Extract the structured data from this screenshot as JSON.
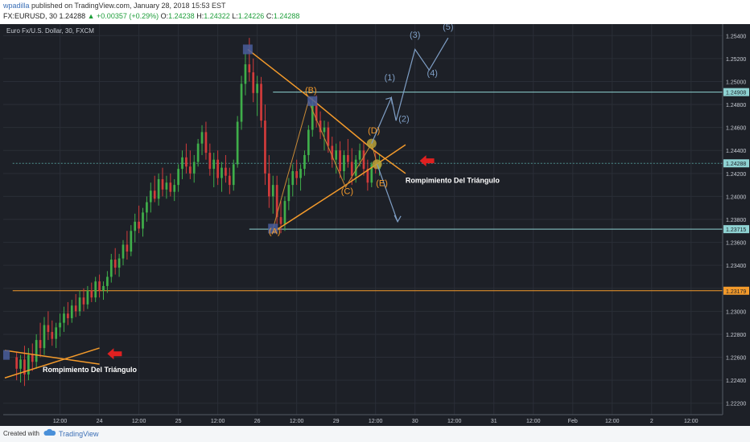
{
  "header": {
    "author": "wpadilla",
    "published_text": "published on TradingView.com, January 28, 2018 15:53 EST",
    "symbol_info": "FX:EURUSD, 30",
    "last": "1.24288",
    "change": "+0.00357 (+0.29%)",
    "open_label": "O:",
    "open": "1.24238",
    "high_label": "H:",
    "high": "1.24322",
    "low_label": "L:",
    "low": "1.24226",
    "close_label": "C:",
    "close": "1.24288"
  },
  "footer": {
    "created_with": "Created with",
    "brand": "TradingView"
  },
  "chart_data": {
    "type": "candlestick",
    "title": "Euro Fx/U.S. Dollar, 30, FXCM",
    "y_axis": {
      "range": [
        1.221,
        1.255
      ],
      "ticks": [
        "1.25400",
        "1.25200",
        "1.25000",
        "1.24800",
        "1.24600",
        "1.24400",
        "1.24200",
        "1.24000",
        "1.23800",
        "1.23600",
        "1.23400",
        "1.23200",
        "1.23000",
        "1.22800",
        "1.22600",
        "1.22400",
        "1.22200"
      ]
    },
    "x_axis": {
      "ticks": [
        {
          "label": "12:00",
          "t": 0.5
        },
        {
          "label": "24",
          "t": 1
        },
        {
          "label": "12:00",
          "t": 1.5
        },
        {
          "label": "25",
          "t": 2
        },
        {
          "label": "12:00",
          "t": 2.5
        },
        {
          "label": "26",
          "t": 3
        },
        {
          "label": "12:00",
          "t": 3.5
        },
        {
          "label": "29",
          "t": 4
        },
        {
          "label": "12:00",
          "t": 4.5
        },
        {
          "label": "30",
          "t": 5
        },
        {
          "label": "12:00",
          "t": 5.5
        },
        {
          "label": "31",
          "t": 6
        },
        {
          "label": "12:00",
          "t": 6.5
        },
        {
          "label": "Feb",
          "t": 7
        },
        {
          "label": "12:00",
          "t": 7.5
        },
        {
          "label": "2",
          "t": 8
        },
        {
          "label": "12:00",
          "t": 8.5
        }
      ]
    },
    "price_marks": [
      {
        "label": "1.24908",
        "value": 1.24908,
        "color": "#8fd3d3"
      },
      {
        "label": "1.24288",
        "value": 1.24288,
        "color": "#8fd3d3"
      },
      {
        "label": "1.23715",
        "value": 1.23715,
        "color": "#8fd3d3"
      },
      {
        "label": "1.23179",
        "value": 1.23179,
        "color": "#f39a2b"
      }
    ],
    "h_lines": [
      {
        "value": 1.24908,
        "t_start": 3.2,
        "color": "#8fd3d3"
      },
      {
        "value": 1.23715,
        "t_start": 2.9,
        "color": "#8fd3d3"
      },
      {
        "value": 1.23179,
        "t_start": -0.1,
        "color": "#f39a2b"
      },
      {
        "value": 1.24288,
        "t_start": -0.1,
        "color": "#4f8f8f",
        "dashed": true
      }
    ],
    "candles": [
      {
        "t": -0.05,
        "o": 1.226,
        "h": 1.2265,
        "l": 1.224,
        "c": 1.225
      },
      {
        "t": 0.0,
        "o": 1.225,
        "h": 1.2262,
        "l": 1.2238,
        "c": 1.2258
      },
      {
        "t": 0.05,
        "o": 1.2258,
        "h": 1.227,
        "l": 1.2235,
        "c": 1.2245
      },
      {
        "t": 0.1,
        "o": 1.2245,
        "h": 1.2268,
        "l": 1.224,
        "c": 1.2262
      },
      {
        "t": 0.15,
        "o": 1.2262,
        "h": 1.2272,
        "l": 1.2248,
        "c": 1.2256
      },
      {
        "t": 0.2,
        "o": 1.2256,
        "h": 1.228,
        "l": 1.225,
        "c": 1.2275
      },
      {
        "t": 0.25,
        "o": 1.2275,
        "h": 1.229,
        "l": 1.226,
        "c": 1.2268
      },
      {
        "t": 0.3,
        "o": 1.2268,
        "h": 1.2295,
        "l": 1.2262,
        "c": 1.2288
      },
      {
        "t": 0.35,
        "o": 1.2288,
        "h": 1.23,
        "l": 1.2275,
        "c": 1.2282
      },
      {
        "t": 0.4,
        "o": 1.2282,
        "h": 1.2292,
        "l": 1.227,
        "c": 1.2276
      },
      {
        "t": 0.45,
        "o": 1.2276,
        "h": 1.229,
        "l": 1.2268,
        "c": 1.2286
      },
      {
        "t": 0.5,
        "o": 1.2286,
        "h": 1.2298,
        "l": 1.2278,
        "c": 1.229
      },
      {
        "t": 0.55,
        "o": 1.229,
        "h": 1.2304,
        "l": 1.2282,
        "c": 1.2298
      },
      {
        "t": 0.6,
        "o": 1.2298,
        "h": 1.2308,
        "l": 1.2288,
        "c": 1.2294
      },
      {
        "t": 0.65,
        "o": 1.2294,
        "h": 1.231,
        "l": 1.229,
        "c": 1.2305
      },
      {
        "t": 0.7,
        "o": 1.2305,
        "h": 1.2315,
        "l": 1.2295,
        "c": 1.23
      },
      {
        "t": 0.75,
        "o": 1.23,
        "h": 1.2318,
        "l": 1.2296,
        "c": 1.2312
      },
      {
        "t": 0.8,
        "o": 1.2312,
        "h": 1.232,
        "l": 1.23,
        "c": 1.2306
      },
      {
        "t": 0.85,
        "o": 1.2306,
        "h": 1.2322,
        "l": 1.2302,
        "c": 1.2318
      },
      {
        "t": 0.9,
        "o": 1.2318,
        "h": 1.2325,
        "l": 1.2308,
        "c": 1.2312
      },
      {
        "t": 0.95,
        "o": 1.2312,
        "h": 1.233,
        "l": 1.2308,
        "c": 1.2326
      },
      {
        "t": 1.0,
        "o": 1.2326,
        "h": 1.2332,
        "l": 1.2312,
        "c": 1.2318
      },
      {
        "t": 1.05,
        "o": 1.2318,
        "h": 1.2326,
        "l": 1.231,
        "c": 1.2322
      },
      {
        "t": 1.1,
        "o": 1.2322,
        "h": 1.2335,
        "l": 1.2316,
        "c": 1.233
      },
      {
        "t": 1.15,
        "o": 1.233,
        "h": 1.235,
        "l": 1.2325,
        "c": 1.2345
      },
      {
        "t": 1.2,
        "o": 1.2345,
        "h": 1.2355,
        "l": 1.2332,
        "c": 1.2338
      },
      {
        "t": 1.25,
        "o": 1.2338,
        "h": 1.235,
        "l": 1.233,
        "c": 1.2346
      },
      {
        "t": 1.3,
        "o": 1.2346,
        "h": 1.2362,
        "l": 1.234,
        "c": 1.2358
      },
      {
        "t": 1.35,
        "o": 1.2358,
        "h": 1.237,
        "l": 1.2345,
        "c": 1.2352
      },
      {
        "t": 1.4,
        "o": 1.2352,
        "h": 1.2375,
        "l": 1.2348,
        "c": 1.237
      },
      {
        "t": 1.45,
        "o": 1.237,
        "h": 1.2385,
        "l": 1.236,
        "c": 1.2378
      },
      {
        "t": 1.5,
        "o": 1.2378,
        "h": 1.2392,
        "l": 1.2368,
        "c": 1.2372
      },
      {
        "t": 1.55,
        "o": 1.2372,
        "h": 1.239,
        "l": 1.2365,
        "c": 1.2386
      },
      {
        "t": 1.6,
        "o": 1.2386,
        "h": 1.24,
        "l": 1.2378,
        "c": 1.2395
      },
      {
        "t": 1.65,
        "o": 1.2395,
        "h": 1.2412,
        "l": 1.2386,
        "c": 1.2405
      },
      {
        "t": 1.7,
        "o": 1.2405,
        "h": 1.2418,
        "l": 1.2395,
        "c": 1.2398
      },
      {
        "t": 1.75,
        "o": 1.2398,
        "h": 1.242,
        "l": 1.2392,
        "c": 1.2415
      },
      {
        "t": 1.8,
        "o": 1.2415,
        "h": 1.2425,
        "l": 1.24,
        "c": 1.2406
      },
      {
        "t": 1.85,
        "o": 1.2406,
        "h": 1.2418,
        "l": 1.2398,
        "c": 1.2412
      },
      {
        "t": 1.9,
        "o": 1.2412,
        "h": 1.242,
        "l": 1.24,
        "c": 1.2404
      },
      {
        "t": 1.95,
        "o": 1.2404,
        "h": 1.2415,
        "l": 1.2396,
        "c": 1.241
      },
      {
        "t": 2.0,
        "o": 1.241,
        "h": 1.2428,
        "l": 1.2404,
        "c": 1.2424
      },
      {
        "t": 2.05,
        "o": 1.2424,
        "h": 1.244,
        "l": 1.2415,
        "c": 1.2434
      },
      {
        "t": 2.1,
        "o": 1.2434,
        "h": 1.2446,
        "l": 1.242,
        "c": 1.2426
      },
      {
        "t": 2.15,
        "o": 1.2426,
        "h": 1.244,
        "l": 1.2415,
        "c": 1.242
      },
      {
        "t": 2.2,
        "o": 1.242,
        "h": 1.2436,
        "l": 1.2412,
        "c": 1.243
      },
      {
        "t": 2.25,
        "o": 1.243,
        "h": 1.245,
        "l": 1.2426,
        "c": 1.2446
      },
      {
        "t": 2.3,
        "o": 1.2446,
        "h": 1.2462,
        "l": 1.2436,
        "c": 1.2456
      },
      {
        "t": 2.35,
        "o": 1.2456,
        "h": 1.2465,
        "l": 1.2432,
        "c": 1.2438
      },
      {
        "t": 2.4,
        "o": 1.2438,
        "h": 1.2446,
        "l": 1.2418,
        "c": 1.2424
      },
      {
        "t": 2.45,
        "o": 1.2424,
        "h": 1.2438,
        "l": 1.2408,
        "c": 1.2432
      },
      {
        "t": 2.5,
        "o": 1.2432,
        "h": 1.244,
        "l": 1.241,
        "c": 1.2416
      },
      {
        "t": 2.55,
        "o": 1.2416,
        "h": 1.243,
        "l": 1.2404,
        "c": 1.2425
      },
      {
        "t": 2.6,
        "o": 1.2425,
        "h": 1.2436,
        "l": 1.2412,
        "c": 1.2418
      },
      {
        "t": 2.65,
        "o": 1.2418,
        "h": 1.2425,
        "l": 1.2402,
        "c": 1.241
      },
      {
        "t": 2.7,
        "o": 1.241,
        "h": 1.2432,
        "l": 1.2405,
        "c": 1.2428
      },
      {
        "t": 2.75,
        "o": 1.2428,
        "h": 1.247,
        "l": 1.2425,
        "c": 1.2465
      },
      {
        "t": 2.8,
        "o": 1.2465,
        "h": 1.2505,
        "l": 1.2458,
        "c": 1.2498
      },
      {
        "t": 2.85,
        "o": 1.2498,
        "h": 1.2525,
        "l": 1.2488,
        "c": 1.2515
      },
      {
        "t": 2.9,
        "o": 1.2515,
        "h": 1.2538,
        "l": 1.25,
        "c": 1.2508
      },
      {
        "t": 2.95,
        "o": 1.2508,
        "h": 1.252,
        "l": 1.2482,
        "c": 1.249
      },
      {
        "t": 3.0,
        "o": 1.249,
        "h": 1.2505,
        "l": 1.247,
        "c": 1.2498
      },
      {
        "t": 3.05,
        "o": 1.2498,
        "h": 1.2504,
        "l": 1.246,
        "c": 1.2466
      },
      {
        "t": 3.1,
        "o": 1.2466,
        "h": 1.248,
        "l": 1.241,
        "c": 1.242
      },
      {
        "t": 3.15,
        "o": 1.242,
        "h": 1.2436,
        "l": 1.239,
        "c": 1.24
      },
      {
        "t": 3.2,
        "o": 1.24,
        "h": 1.2418,
        "l": 1.2385,
        "c": 1.241
      },
      {
        "t": 3.25,
        "o": 1.241,
        "h": 1.2418,
        "l": 1.2375,
        "c": 1.2382
      },
      {
        "t": 3.3,
        "o": 1.2382,
        "h": 1.2396,
        "l": 1.2368,
        "c": 1.2376
      },
      {
        "t": 3.35,
        "o": 1.2376,
        "h": 1.24,
        "l": 1.237,
        "c": 1.2396
      },
      {
        "t": 3.4,
        "o": 1.2396,
        "h": 1.2416,
        "l": 1.2388,
        "c": 1.241
      },
      {
        "t": 3.45,
        "o": 1.241,
        "h": 1.2428,
        "l": 1.24,
        "c": 1.2422
      },
      {
        "t": 3.5,
        "o": 1.2422,
        "h": 1.2432,
        "l": 1.241,
        "c": 1.2416
      },
      {
        "t": 3.55,
        "o": 1.2416,
        "h": 1.2428,
        "l": 1.2405,
        "c": 1.2424
      },
      {
        "t": 3.6,
        "o": 1.2424,
        "h": 1.244,
        "l": 1.2418,
        "c": 1.2436
      },
      {
        "t": 3.65,
        "o": 1.2436,
        "h": 1.2462,
        "l": 1.243,
        "c": 1.2458
      },
      {
        "t": 3.7,
        "o": 1.2458,
        "h": 1.2486,
        "l": 1.2452,
        "c": 1.248
      },
      {
        "t": 3.75,
        "o": 1.248,
        "h": 1.2488,
        "l": 1.246,
        "c": 1.2466
      },
      {
        "t": 3.8,
        "o": 1.2466,
        "h": 1.2474,
        "l": 1.245,
        "c": 1.2456
      },
      {
        "t": 3.85,
        "o": 1.2456,
        "h": 1.2466,
        "l": 1.244,
        "c": 1.246
      },
      {
        "t": 3.9,
        "o": 1.246,
        "h": 1.2465,
        "l": 1.2438,
        "c": 1.2444
      },
      {
        "t": 3.95,
        "o": 1.2444,
        "h": 1.2452,
        "l": 1.2425,
        "c": 1.2432
      },
      {
        "t": 4.0,
        "o": 1.2432,
        "h": 1.2446,
        "l": 1.242,
        "c": 1.244
      },
      {
        "t": 4.05,
        "o": 1.244,
        "h": 1.2448,
        "l": 1.2416,
        "c": 1.2422
      },
      {
        "t": 4.1,
        "o": 1.2422,
        "h": 1.244,
        "l": 1.2414,
        "c": 1.2436
      },
      {
        "t": 4.15,
        "o": 1.2436,
        "h": 1.245,
        "l": 1.2425,
        "c": 1.243
      },
      {
        "t": 4.2,
        "o": 1.243,
        "h": 1.2442,
        "l": 1.241,
        "c": 1.2418
      },
      {
        "t": 4.25,
        "o": 1.2418,
        "h": 1.2436,
        "l": 1.2412,
        "c": 1.2432
      },
      {
        "t": 4.3,
        "o": 1.2432,
        "h": 1.2446,
        "l": 1.2426,
        "c": 1.244
      },
      {
        "t": 4.35,
        "o": 1.244,
        "h": 1.2448,
        "l": 1.2418,
        "c": 1.2424
      },
      {
        "t": 4.4,
        "o": 1.2424,
        "h": 1.2432,
        "l": 1.2405,
        "c": 1.2412
      },
      {
        "t": 4.45,
        "o": 1.2412,
        "h": 1.243,
        "l": 1.2408,
        "c": 1.2428
      },
      {
        "t": 4.5,
        "o": 1.2428,
        "h": 1.244,
        "l": 1.242,
        "c": 1.2424
      },
      {
        "t": 4.55,
        "o": 1.2424,
        "h": 1.2436,
        "l": 1.2418,
        "c": 1.2429
      }
    ],
    "lines": [
      {
        "points": [
          [
            2.88,
            1.2528
          ],
          [
            3.72,
            1.2483
          ],
          [
            4.48,
            1.244
          ],
          [
            4.88,
            1.242
          ]
        ],
        "color": "#f39a2b"
      },
      {
        "points": [
          [
            3.18,
            1.2368
          ],
          [
            4.08,
            1.2408
          ],
          [
            4.88,
            1.2445
          ]
        ],
        "color": "#f39a2b"
      },
      {
        "points": [
          [
            3.2,
            1.2372
          ],
          [
            3.65,
            1.2483
          ],
          [
            4.12,
            1.2408
          ],
          [
            4.45,
            1.2446
          ],
          [
            4.52,
            1.2428
          ]
        ],
        "color": "#c98a36",
        "thin": true
      },
      {
        "points": [
          [
            -0.2,
            1.2266
          ],
          [
            1.0,
            1.2254
          ]
        ],
        "color": "#f39a2b"
      },
      {
        "points": [
          [
            -0.2,
            1.2242
          ],
          [
            1.0,
            1.2268
          ]
        ],
        "color": "#f39a2b"
      }
    ],
    "projection": {
      "color": "#7f9fc6",
      "bull": [
        [
          4.45,
          1.2446
        ],
        [
          4.7,
          1.2486
        ],
        [
          4.76,
          1.2466
        ],
        [
          5.0,
          1.2528
        ],
        [
          5.18,
          1.251
        ],
        [
          5.42,
          1.2538
        ]
      ],
      "bear": [
        [
          4.52,
          1.2428
        ],
        [
          4.78,
          1.2378
        ]
      ]
    },
    "wave_labels": [
      {
        "text": "(A)",
        "t": 3.22,
        "p": 1.2367,
        "color": "#f39a2b"
      },
      {
        "text": "(B)",
        "t": 3.68,
        "p": 1.249,
        "color": "#f39a2b"
      },
      {
        "text": "(C)",
        "t": 4.14,
        "p": 1.2402,
        "color": "#f39a2b"
      },
      {
        "text": "(D)",
        "t": 4.48,
        "p": 1.2455,
        "color": "#f39a2b"
      },
      {
        "text": "(E)",
        "t": 4.58,
        "p": 1.2409,
        "color": "#f39a2b"
      },
      {
        "text": "(1)",
        "t": 4.68,
        "p": 1.2501,
        "color": "#7f9fc6"
      },
      {
        "text": "(2)",
        "t": 4.86,
        "p": 1.2465,
        "color": "#7f9fc6"
      },
      {
        "text": "(3)",
        "t": 5.0,
        "p": 1.2538,
        "color": "#7f9fc6"
      },
      {
        "text": "(4)",
        "t": 5.22,
        "p": 1.2505,
        "color": "#7f9fc6"
      },
      {
        "text": "(5)",
        "t": 5.42,
        "p": 1.2545,
        "color": "#7f9fc6"
      }
    ],
    "annotations": [
      {
        "text": "Rompimiento Del Triángulo",
        "t": 4.88,
        "p": 1.2412,
        "arrow_t": 5.06,
        "arrow_p": 1.2431
      },
      {
        "text": "Rompimiento Del Triángulo",
        "t": 0.28,
        "p": 1.2247,
        "arrow_t": 1.1,
        "arrow_p": 1.2263
      }
    ]
  }
}
